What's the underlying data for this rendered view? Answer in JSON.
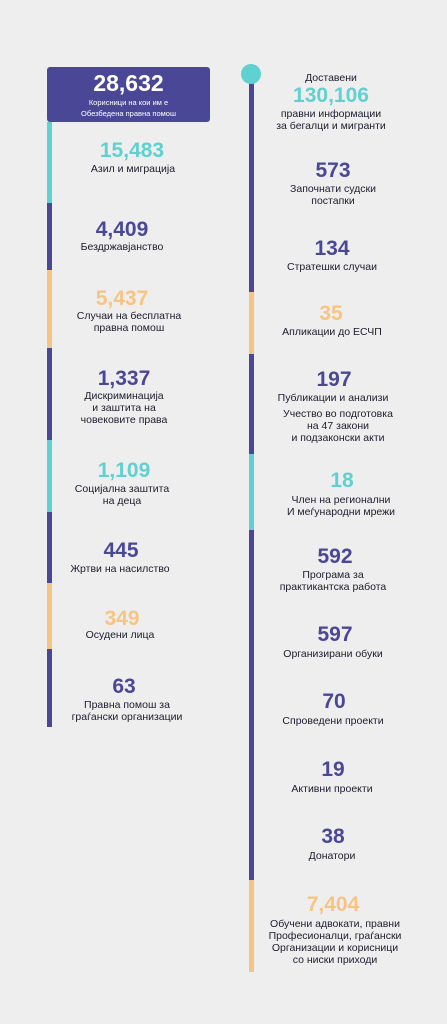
{
  "colors": {
    "navy": "#4a4896",
    "teal": "#5fd1d0",
    "orange": "#f7c583",
    "background": "#eeeeee"
  },
  "header": {
    "value": "28,632",
    "line1": "Корисници на кои им е",
    "line2": "Обезбедена правна помош"
  },
  "left": [
    {
      "value": "15,483",
      "lines": [
        "Азил и миграција"
      ],
      "color": "teal"
    },
    {
      "value": "4,409",
      "lines": [
        "Бездржавјанство"
      ],
      "color": "navy"
    },
    {
      "value": "5,437",
      "lines": [
        "Случаи на бесплатна",
        "правна помош"
      ],
      "color": "orange"
    },
    {
      "value": "1,337",
      "lines": [
        "Дискриминација",
        "и заштита на",
        "човековите права"
      ],
      "color": "navy"
    },
    {
      "value": "1,109",
      "lines": [
        "Социјална заштита",
        "на деца"
      ],
      "color": "teal"
    },
    {
      "value": "445",
      "lines": [
        "Жртви на насилство"
      ],
      "color": "navy"
    },
    {
      "value": "349",
      "lines": [
        "Осудени лица"
      ],
      "color": "orange"
    },
    {
      "value": "63",
      "lines": [
        "Правна помош за",
        "граѓански организации"
      ],
      "color": "navy"
    }
  ],
  "right_top": {
    "pre_label": "Доставени",
    "value": "130,106",
    "lines": [
      "правни информации",
      "за бегалци и мигранти"
    ]
  },
  "right": [
    {
      "value": "573",
      "lines": [
        "Започнати судски",
        "постапки"
      ],
      "color": "navy"
    },
    {
      "value": "134",
      "lines": [
        "Стратешки случаи"
      ],
      "color": "navy"
    },
    {
      "value": "35",
      "lines": [
        "Апликации до ЕСЧП"
      ],
      "color": "orange"
    },
    {
      "value": "197",
      "lines": [
        "Публикации и анализи"
      ],
      "color": "navy"
    },
    {
      "value": "",
      "lines": [
        "Учество во подготовка",
        "на 47 закони",
        "и подзаконски акти"
      ],
      "color": "navy"
    },
    {
      "value": "18",
      "lines": [
        "Член на регионални",
        "И меѓународни мрежи"
      ],
      "color": "teal"
    },
    {
      "value": "592",
      "lines": [
        "Програма за",
        "практикантска работа"
      ],
      "color": "navy"
    },
    {
      "value": "597",
      "lines": [
        "Организирани обуки"
      ],
      "color": "navy"
    },
    {
      "value": "70",
      "lines": [
        "Спроведени проекти"
      ],
      "color": "navy"
    },
    {
      "value": "19",
      "lines": [
        "Активни проекти"
      ],
      "color": "navy"
    },
    {
      "value": "38",
      "lines": [
        "Донатори"
      ],
      "color": "navy"
    },
    {
      "value": "7,404",
      "lines": [
        "Обучени адвокати, правни",
        "Професионалци, граѓански",
        "Организации и корисници",
        "со ниски приходи"
      ],
      "color": "orange"
    }
  ]
}
